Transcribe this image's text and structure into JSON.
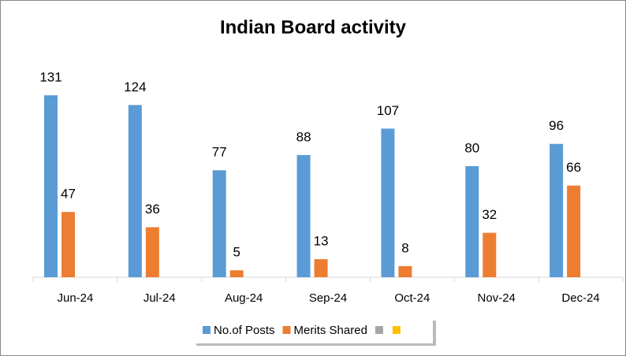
{
  "chart_data": {
    "type": "bar",
    "title": "Indian Board activity",
    "categories": [
      "Jun-24",
      "Jul-24",
      "Aug-24",
      "Sep-24",
      "Oct-24",
      "Nov-24",
      "Dec-24"
    ],
    "series": [
      {
        "name": "No.of Posts",
        "color": "#5b9bd5",
        "values": [
          131,
          124,
          77,
          88,
          107,
          80,
          96
        ]
      },
      {
        "name": "Merits Shared",
        "color": "#ed7d31",
        "values": [
          47,
          36,
          5,
          13,
          8,
          32,
          66
        ]
      }
    ],
    "legend": "bottom"
  }
}
